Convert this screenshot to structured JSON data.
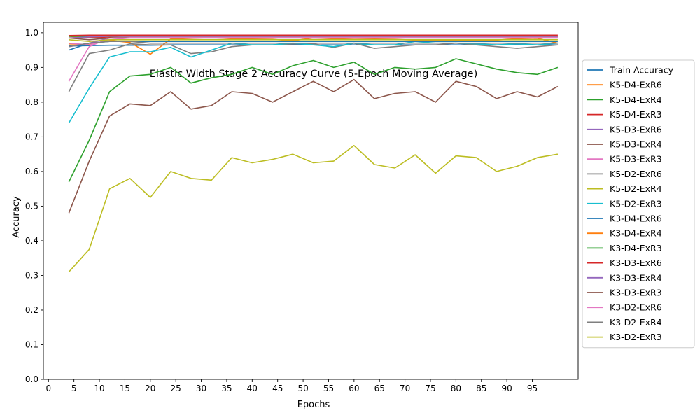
{
  "chart_data": {
    "type": "line",
    "title": "Elastic Width Stage 2 Accuracy Curve (5-Epoch Moving Average)",
    "xlabel": "Epochs",
    "ylabel": "Accuracy",
    "xlim": [
      -1,
      104
    ],
    "ylim": [
      0.0,
      1.03
    ],
    "xticks": [
      0,
      5,
      10,
      15,
      20,
      25,
      30,
      35,
      40,
      45,
      50,
      55,
      60,
      65,
      70,
      75,
      80,
      85,
      90,
      95
    ],
    "yticks": [
      "0.0",
      "0.1",
      "0.2",
      "0.3",
      "0.4",
      "0.5",
      "0.6",
      "0.7",
      "0.8",
      "0.9",
      "1.0"
    ],
    "grid": false,
    "legend_position": "right-outside",
    "x": [
      4,
      8,
      12,
      16,
      20,
      24,
      28,
      32,
      36,
      40,
      44,
      48,
      52,
      56,
      60,
      64,
      68,
      72,
      76,
      80,
      84,
      88,
      92,
      96,
      100
    ],
    "series": [
      {
        "name": "Train Accuracy",
        "color": "#1f77b4",
        "values": [
          0.962,
          0.963,
          0.964,
          0.964,
          0.964,
          0.965,
          0.965,
          0.965,
          0.965,
          0.965,
          0.965,
          0.965,
          0.965,
          0.965,
          0.965,
          0.965,
          0.965,
          0.965,
          0.965,
          0.965,
          0.965,
          0.965,
          0.965,
          0.965,
          0.965
        ]
      },
      {
        "name": "K5-D4-ExR6",
        "color": "#ff7f0e",
        "values": [
          0.968,
          0.966,
          0.978,
          0.972,
          0.938,
          0.982,
          0.984,
          0.986,
          0.983,
          0.982,
          0.981,
          0.977,
          0.985,
          0.983,
          0.981,
          0.982,
          0.981,
          0.979,
          0.978,
          0.977,
          0.978,
          0.979,
          0.983,
          0.984,
          0.97
        ]
      },
      {
        "name": "K5-D4-ExR4",
        "color": "#2ca02c",
        "values": [
          0.57,
          0.69,
          0.83,
          0.875,
          0.88,
          0.9,
          0.855,
          0.87,
          0.88,
          0.9,
          0.88,
          0.905,
          0.92,
          0.9,
          0.915,
          0.88,
          0.9,
          0.895,
          0.9,
          0.925,
          0.91,
          0.895,
          0.885,
          0.88,
          0.9
        ]
      },
      {
        "name": "K5-D4-ExR3",
        "color": "#d62728",
        "values": [
          0.99,
          0.985,
          0.988,
          0.99,
          0.99,
          0.99,
          0.99,
          0.99,
          0.99,
          0.99,
          0.99,
          0.99,
          0.99,
          0.99,
          0.99,
          0.99,
          0.99,
          0.99,
          0.99,
          0.99,
          0.99,
          0.99,
          0.99,
          0.99,
          0.99
        ]
      },
      {
        "name": "K5-D3-ExR6",
        "color": "#9467bd",
        "values": [
          0.96,
          0.97,
          0.985,
          0.988,
          0.99,
          0.99,
          0.99,
          0.99,
          0.99,
          0.99,
          0.99,
          0.99,
          0.99,
          0.99,
          0.99,
          0.99,
          0.99,
          0.99,
          0.99,
          0.99,
          0.99,
          0.99,
          0.99,
          0.99,
          0.99
        ]
      },
      {
        "name": "K5-D3-ExR4",
        "color": "#8c564b",
        "values": [
          0.48,
          0.63,
          0.76,
          0.795,
          0.79,
          0.83,
          0.78,
          0.79,
          0.83,
          0.825,
          0.8,
          0.83,
          0.86,
          0.83,
          0.865,
          0.81,
          0.825,
          0.83,
          0.8,
          0.86,
          0.845,
          0.81,
          0.83,
          0.815,
          0.845
        ]
      },
      {
        "name": "K5-D3-ExR3",
        "color": "#e377c2",
        "values": [
          0.86,
          0.96,
          0.985,
          0.988,
          0.988,
          0.988,
          0.988,
          0.988,
          0.988,
          0.988,
          0.988,
          0.988,
          0.988,
          0.988,
          0.988,
          0.988,
          0.988,
          0.988,
          0.988,
          0.988,
          0.988,
          0.988,
          0.988,
          0.988,
          0.988
        ]
      },
      {
        "name": "K5-D2-ExR6",
        "color": "#7f7f7f",
        "values": [
          0.83,
          0.94,
          0.95,
          0.968,
          0.965,
          0.965,
          0.94,
          0.945,
          0.96,
          0.965,
          0.965,
          0.968,
          0.968,
          0.958,
          0.97,
          0.955,
          0.96,
          0.965,
          0.965,
          0.97,
          0.965,
          0.96,
          0.955,
          0.96,
          0.965
        ]
      },
      {
        "name": "K5-D2-ExR4",
        "color": "#bcbd22",
        "values": [
          0.31,
          0.375,
          0.55,
          0.58,
          0.525,
          0.6,
          0.58,
          0.575,
          0.64,
          0.625,
          0.635,
          0.65,
          0.625,
          0.63,
          0.675,
          0.62,
          0.61,
          0.648,
          0.595,
          0.645,
          0.64,
          0.6,
          0.615,
          0.64,
          0.65
        ]
      },
      {
        "name": "K5-D2-ExR3",
        "color": "#17becf",
        "values": [
          0.74,
          0.84,
          0.93,
          0.945,
          0.945,
          0.958,
          0.93,
          0.95,
          0.97,
          0.965,
          0.965,
          0.97,
          0.965,
          0.96,
          0.97,
          0.965,
          0.965,
          0.975,
          0.97,
          0.97,
          0.968,
          0.965,
          0.968,
          0.965,
          0.97
        ]
      },
      {
        "name": "K3-D4-ExR6",
        "color": "#1f77b4",
        "values": [
          0.95,
          0.97,
          0.975,
          0.975,
          0.975,
          0.975,
          0.975,
          0.975,
          0.975,
          0.975,
          0.975,
          0.975,
          0.975,
          0.975,
          0.975,
          0.975,
          0.975,
          0.975,
          0.975,
          0.975,
          0.975,
          0.975,
          0.975,
          0.975,
          0.975
        ]
      },
      {
        "name": "K3-D4-ExR4",
        "color": "#ff7f0e",
        "values": [
          0.99,
          0.988,
          0.99,
          0.99,
          0.99,
          0.99,
          0.99,
          0.99,
          0.99,
          0.99,
          0.99,
          0.99,
          0.99,
          0.99,
          0.99,
          0.99,
          0.99,
          0.99,
          0.99,
          0.99,
          0.99,
          0.99,
          0.99,
          0.99,
          0.99
        ]
      },
      {
        "name": "K3-D4-ExR3",
        "color": "#2ca02c",
        "values": [
          0.99,
          0.99,
          0.99,
          0.99,
          0.99,
          0.99,
          0.99,
          0.99,
          0.99,
          0.99,
          0.99,
          0.99,
          0.99,
          0.99,
          0.99,
          0.99,
          0.99,
          0.99,
          0.99,
          0.99,
          0.99,
          0.99,
          0.99,
          0.99,
          0.99
        ]
      },
      {
        "name": "K3-D3-ExR6",
        "color": "#d62728",
        "values": [
          0.992,
          0.993,
          0.993,
          0.993,
          0.993,
          0.993,
          0.993,
          0.993,
          0.993,
          0.993,
          0.993,
          0.993,
          0.993,
          0.993,
          0.993,
          0.993,
          0.993,
          0.993,
          0.993,
          0.993,
          0.993,
          0.993,
          0.993,
          0.993,
          0.993
        ]
      },
      {
        "name": "K3-D3-ExR4",
        "color": "#9467bd",
        "values": [
          0.985,
          0.988,
          0.99,
          0.99,
          0.99,
          0.99,
          0.99,
          0.99,
          0.99,
          0.99,
          0.99,
          0.99,
          0.99,
          0.99,
          0.99,
          0.99,
          0.99,
          0.99,
          0.99,
          0.99,
          0.99,
          0.99,
          0.99,
          0.99,
          0.99
        ]
      },
      {
        "name": "K3-D3-ExR3",
        "color": "#8c564b",
        "values": [
          0.985,
          0.98,
          0.985,
          0.985,
          0.985,
          0.985,
          0.985,
          0.985,
          0.985,
          0.985,
          0.985,
          0.985,
          0.985,
          0.985,
          0.985,
          0.985,
          0.985,
          0.985,
          0.985,
          0.985,
          0.985,
          0.985,
          0.985,
          0.985,
          0.985
        ]
      },
      {
        "name": "K3-D2-ExR6",
        "color": "#e377c2",
        "values": [
          0.97,
          0.965,
          0.98,
          0.985,
          0.985,
          0.985,
          0.985,
          0.985,
          0.985,
          0.985,
          0.985,
          0.985,
          0.985,
          0.985,
          0.985,
          0.985,
          0.985,
          0.985,
          0.985,
          0.985,
          0.985,
          0.985,
          0.985,
          0.985,
          0.985
        ]
      },
      {
        "name": "K3-D2-ExR4",
        "color": "#7f7f7f",
        "values": [
          0.96,
          0.97,
          0.975,
          0.975,
          0.97,
          0.97,
          0.97,
          0.97,
          0.97,
          0.97,
          0.97,
          0.97,
          0.97,
          0.97,
          0.97,
          0.97,
          0.97,
          0.97,
          0.97,
          0.97,
          0.97,
          0.97,
          0.97,
          0.97,
          0.97
        ]
      },
      {
        "name": "K3-D2-ExR3",
        "color": "#bcbd22",
        "values": [
          0.98,
          0.975,
          0.98,
          0.98,
          0.98,
          0.98,
          0.98,
          0.98,
          0.98,
          0.98,
          0.98,
          0.98,
          0.98,
          0.98,
          0.98,
          0.98,
          0.98,
          0.98,
          0.98,
          0.98,
          0.98,
          0.98,
          0.98,
          0.98,
          0.98
        ]
      }
    ]
  }
}
